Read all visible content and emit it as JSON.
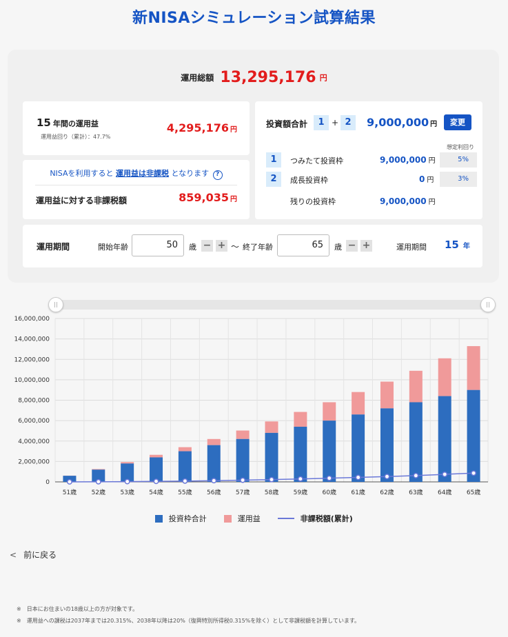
{
  "title": "新NISAシミュレーション試算結果",
  "total": {
    "label": "運用総額",
    "value": "13,295,176",
    "unit": "円"
  },
  "profit": {
    "years_num": "15",
    "years_label": "年間の運用益",
    "rate_note": "運用益回り（累計）：47.7%",
    "value": "4,295,176",
    "unit": "円"
  },
  "tax": {
    "note_prefix": "NISAを利用すると",
    "note_link": "運用益は非課税",
    "note_suffix": "となります",
    "help": "?",
    "label": "運用益に対する非課税額",
    "value": "859,035",
    "unit": "円"
  },
  "investment": {
    "label": "投資額合計",
    "box1": "1",
    "plus": "+",
    "box2": "2",
    "value": "9,000,000",
    "unit": "円",
    "change_button": "変更",
    "rate_header": "想定利回り",
    "rows": [
      {
        "num": "1",
        "label": "つみたて投資枠",
        "value": "9,000,000",
        "unit": "円",
        "rate": "5%"
      },
      {
        "num": "2",
        "label": "成長投資枠",
        "value": "0",
        "unit": "円",
        "rate": "3%"
      },
      {
        "num": "",
        "label": "残りの投資枠",
        "value": "9,000,000",
        "unit": "円",
        "rate": ""
      }
    ]
  },
  "period": {
    "label": "運用期間",
    "start_label": "開始年齢",
    "start_value": "50",
    "age_unit": "歳",
    "minus": "−",
    "plus": "+",
    "tilde": "～",
    "end_label": "終了年齢",
    "end_value": "65",
    "period_label": "運用期間",
    "period_value": "15",
    "period_unit": "年"
  },
  "slider": {
    "handle": "||"
  },
  "chart_data": {
    "type": "bar",
    "categories": [
      "51歳",
      "52歳",
      "53歳",
      "54歳",
      "55歳",
      "56歳",
      "57歳",
      "58歳",
      "59歳",
      "60歳",
      "61歳",
      "62歳",
      "63歳",
      "64歳",
      "65歳"
    ],
    "series": [
      {
        "name": "投資枠合計",
        "color": "#2d6dbf",
        "values": [
          600000,
          1200000,
          1800000,
          2400000,
          3000000,
          3600000,
          4200000,
          4800000,
          5400000,
          6000000,
          6600000,
          7200000,
          7800000,
          8400000,
          9000000
        ]
      },
      {
        "name": "運用益",
        "color": "#f09a9a",
        "values": [
          15000,
          60000,
          140000,
          250000,
          400000,
          600000,
          830000,
          1120000,
          1450000,
          1800000,
          2200000,
          2620000,
          3080000,
          3700000,
          4295176
        ]
      },
      {
        "name": "非課税額(累計)",
        "color": "#6a78d8",
        "values": [
          3000,
          12000,
          28000,
          50000,
          80000,
          120000,
          166000,
          224000,
          290000,
          360000,
          440000,
          524000,
          616000,
          740000,
          859035
        ]
      }
    ],
    "yticks": [
      "0",
      "2,000,000",
      "4,000,000",
      "6,000,000",
      "8,000,000",
      "10,000,000",
      "12,000,000",
      "14,000,000",
      "16,000,000"
    ],
    "ylim": [
      0,
      16000000
    ]
  },
  "back_link": "前に戻る",
  "notes": [
    "※　日本にお住まいの18歳以上の方が対象です。",
    "※　運用益への課税は2037年までは20.315%、2038年以降は20%（復興特別所得税0.315%を除く）として非課税額を計算しています。"
  ]
}
